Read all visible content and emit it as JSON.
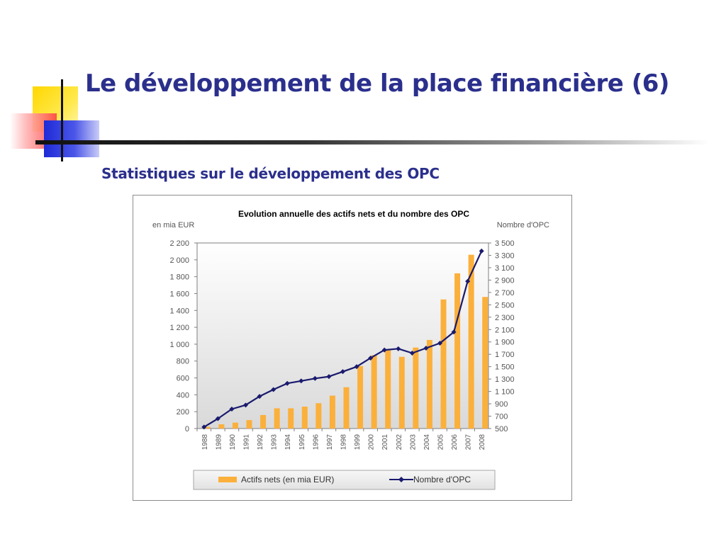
{
  "slide": {
    "title": "Le développement de la place financière (6)",
    "subtitle": "Statistiques sur le développement des OPC"
  },
  "colors": {
    "title": "#2b2f8c",
    "bar": "#fbb03b",
    "line": "#1a1a6e"
  },
  "chart_data": {
    "type": "bar",
    "title": "Evolution annuelle des actifs nets et du nombre des OPC",
    "ylabel": "en mia EUR",
    "y2label": "Nombre d'OPC",
    "categories": [
      "1988",
      "1989",
      "1990",
      "1991",
      "1992",
      "1993",
      "1994",
      "1995",
      "1996",
      "1997",
      "1998",
      "1999",
      "2000",
      "2001",
      "2002",
      "2003",
      "2004",
      "2005",
      "2006",
      "2007",
      "2008"
    ],
    "ylim": [
      0,
      2200
    ],
    "y_ticks": [
      0,
      200,
      400,
      600,
      800,
      1000,
      1200,
      1400,
      1600,
      1800,
      2000,
      2200
    ],
    "y_tick_labels": [
      "0",
      "200",
      "400",
      "600",
      "800",
      "1 000",
      "1 200",
      "1 400",
      "1 600",
      "1 800",
      "2 000",
      "2 200"
    ],
    "y2lim": [
      500,
      3500
    ],
    "y2_ticks": [
      500,
      700,
      900,
      1100,
      1300,
      1500,
      1700,
      1900,
      2100,
      2300,
      2500,
      2700,
      2900,
      3100,
      3300,
      3500
    ],
    "y2_tick_labels": [
      "500",
      "700",
      "900",
      "1 100",
      "1 300",
      "1 500",
      "1 700",
      "1 900",
      "2 100",
      "2 300",
      "2 500",
      "2 700",
      "2 900",
      "3 100",
      "3 300",
      "3 500"
    ],
    "series": [
      {
        "name": "Actifs nets (en mia EUR)",
        "type": "bar",
        "axis": "left",
        "values": [
          20,
          50,
          70,
          100,
          160,
          240,
          240,
          260,
          300,
          390,
          490,
          740,
          870,
          930,
          850,
          960,
          1050,
          1530,
          1840,
          2060,
          1560
        ]
      },
      {
        "name": "Nombre d'OPC",
        "type": "line",
        "axis": "right",
        "values": [
          525,
          660,
          815,
          880,
          1020,
          1130,
          1230,
          1270,
          1310,
          1340,
          1420,
          1500,
          1640,
          1770,
          1790,
          1720,
          1800,
          1880,
          2060,
          2880,
          3370
        ]
      }
    ],
    "grid": false,
    "legend_position": "bottom"
  }
}
